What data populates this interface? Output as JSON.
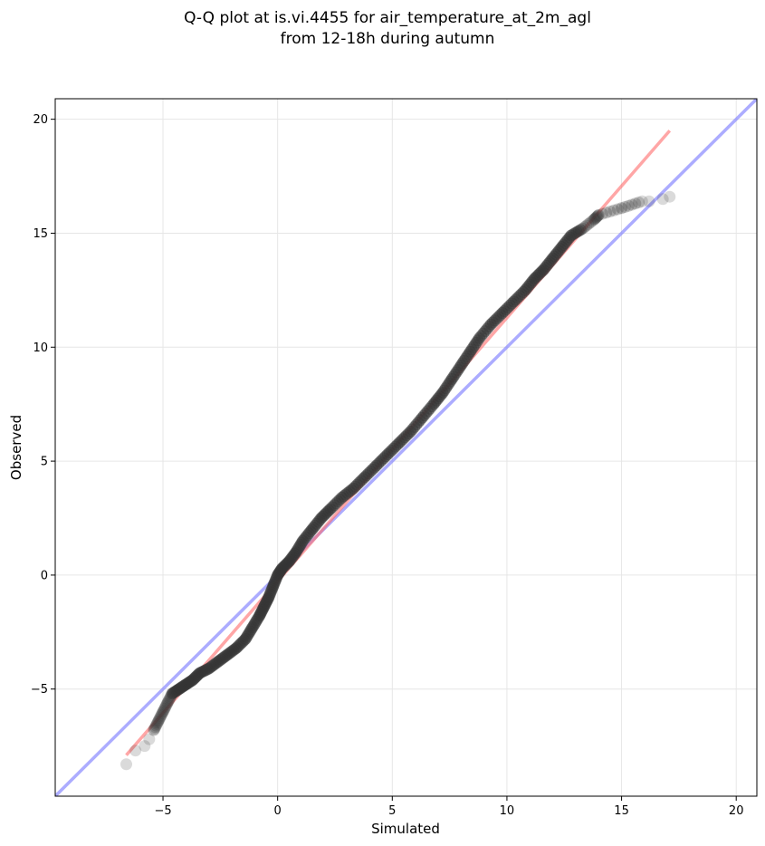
{
  "chart_data": {
    "type": "scatter",
    "title_lines": [
      "Q-Q plot at is.vi.4455 for air_temperature_at_2m_agl",
      "from 12-18h during autumn"
    ],
    "xlabel": "Simulated",
    "ylabel": "Observed",
    "xlim": [
      -9.7,
      20.9
    ],
    "ylim": [
      -9.7,
      20.9
    ],
    "xticks": [
      -5,
      0,
      5,
      10,
      15,
      20
    ],
    "yticks": [
      -5,
      0,
      5,
      10,
      15,
      20
    ],
    "xtick_labels": [
      "−5",
      "0",
      "5",
      "10",
      "15",
      "20"
    ],
    "ytick_labels": [
      "−5",
      "0",
      "5",
      "10",
      "15",
      "20"
    ],
    "grid": true,
    "colors": {
      "points": "#333333",
      "fit_line": "#ff6b6b",
      "identity_line": "#7f7fff"
    },
    "fit_line": {
      "x": [
        -6.6,
        17.1
      ],
      "y": [
        -7.9,
        19.5
      ]
    },
    "identity_line": {
      "x": [
        -9.7,
        20.9
      ],
      "y": [
        -9.7,
        20.9
      ]
    },
    "quantiles": [
      [
        -6.6,
        -8.3
      ],
      [
        -6.2,
        -7.7
      ],
      [
        -5.8,
        -7.5
      ],
      [
        -5.6,
        -7.2
      ],
      [
        -5.4,
        -6.8
      ],
      [
        -5.2,
        -6.4
      ],
      [
        -5.0,
        -6.0
      ],
      [
        -4.8,
        -5.6
      ],
      [
        -4.6,
        -5.2
      ],
      [
        -4.3,
        -5.0
      ],
      [
        -4.0,
        -4.8
      ],
      [
        -3.7,
        -4.6
      ],
      [
        -3.4,
        -4.3
      ],
      [
        -3.0,
        -4.1
      ],
      [
        -2.6,
        -3.8
      ],
      [
        -2.2,
        -3.5
      ],
      [
        -1.8,
        -3.2
      ],
      [
        -1.4,
        -2.8
      ],
      [
        -1.1,
        -2.3
      ],
      [
        -0.8,
        -1.8
      ],
      [
        -0.6,
        -1.4
      ],
      [
        -0.4,
        -1.0
      ],
      [
        -0.2,
        -0.5
      ],
      [
        0.0,
        0.0
      ],
      [
        0.2,
        0.3
      ],
      [
        0.5,
        0.6
      ],
      [
        0.8,
        1.0
      ],
      [
        1.1,
        1.5
      ],
      [
        1.5,
        2.0
      ],
      [
        1.9,
        2.5
      ],
      [
        2.3,
        2.9
      ],
      [
        2.8,
        3.4
      ],
      [
        3.3,
        3.8
      ],
      [
        3.8,
        4.3
      ],
      [
        4.3,
        4.8
      ],
      [
        4.8,
        5.3
      ],
      [
        5.3,
        5.8
      ],
      [
        5.8,
        6.3
      ],
      [
        6.3,
        6.9
      ],
      [
        6.8,
        7.5
      ],
      [
        7.2,
        8.0
      ],
      [
        7.6,
        8.6
      ],
      [
        8.0,
        9.2
      ],
      [
        8.4,
        9.8
      ],
      [
        8.8,
        10.4
      ],
      [
        9.3,
        11.0
      ],
      [
        9.8,
        11.5
      ],
      [
        10.3,
        12.0
      ],
      [
        10.8,
        12.5
      ],
      [
        11.2,
        13.0
      ],
      [
        11.6,
        13.4
      ],
      [
        12.0,
        13.9
      ],
      [
        12.4,
        14.4
      ],
      [
        12.8,
        14.9
      ],
      [
        13.3,
        15.2
      ],
      [
        13.8,
        15.6
      ],
      [
        14.0,
        15.8
      ],
      [
        15.0,
        16.1
      ],
      [
        15.9,
        16.4
      ],
      [
        16.2,
        16.4
      ],
      [
        16.8,
        16.5
      ],
      [
        17.1,
        16.6
      ]
    ]
  }
}
